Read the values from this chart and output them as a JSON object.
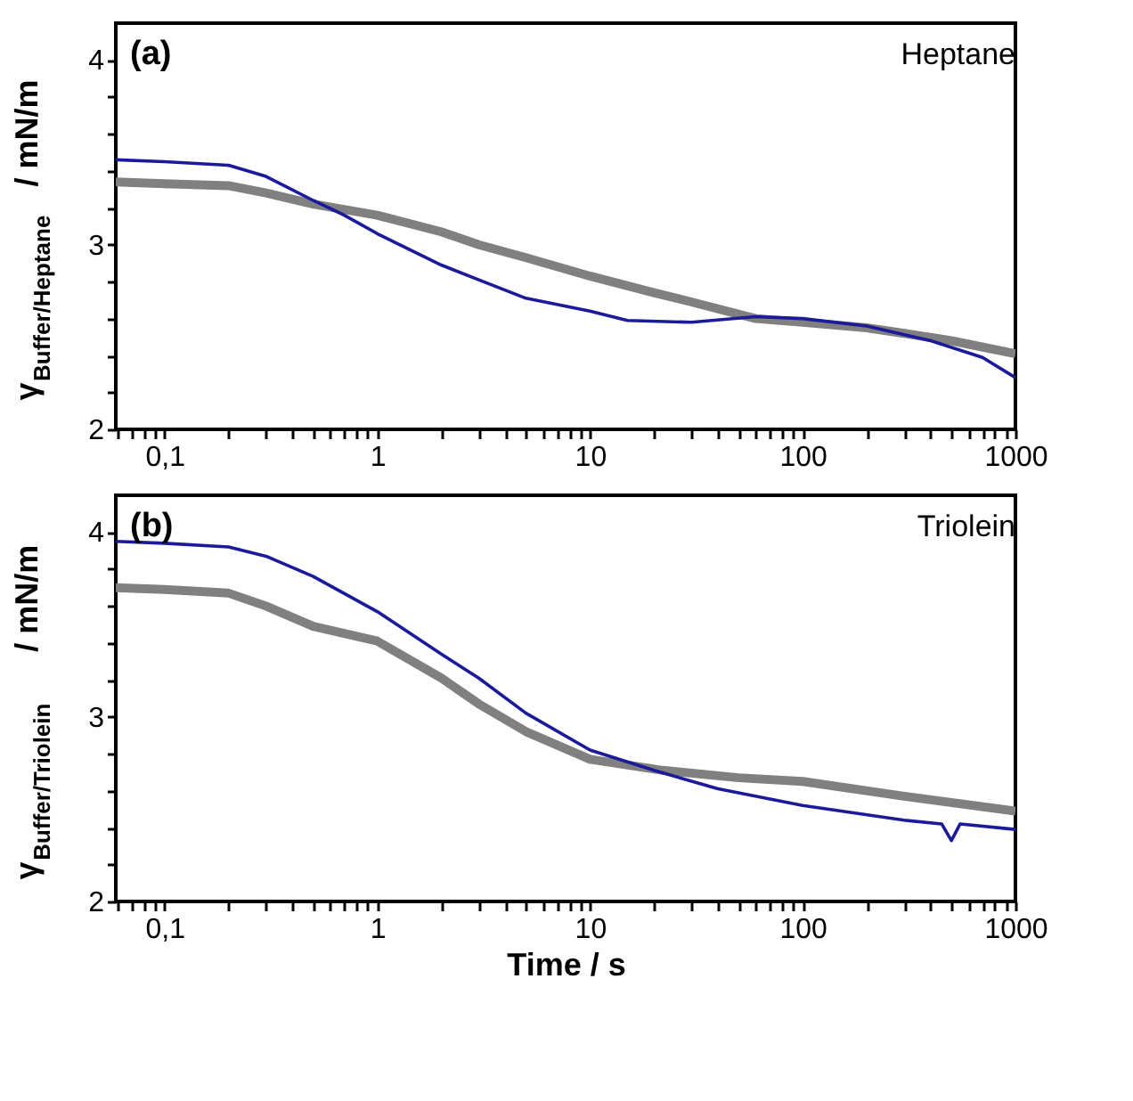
{
  "chart_data": [
    {
      "type": "line",
      "ylabel": "γ$_{Buffer/Heptane}$ / mN/m",
      "annotations": [
        "(a)",
        "Heptane"
      ],
      "xlim": [
        0.059,
        1000
      ],
      "ylim": [
        2,
        4.2
      ],
      "log": "x",
      "xticks": [
        {
          "value": 0.06,
          "label": null
        },
        {
          "value": 0.07,
          "label": null
        },
        {
          "value": 0.08,
          "label": null
        },
        {
          "value": 0.09,
          "label": null
        },
        {
          "value": 0.1,
          "label": "0,1"
        },
        {
          "value": 0.2,
          "label": null
        },
        {
          "value": 0.3,
          "label": null
        },
        {
          "value": 0.4,
          "label": null
        },
        {
          "value": 0.5,
          "label": null
        },
        {
          "value": 0.6,
          "label": null
        },
        {
          "value": 0.7,
          "label": null
        },
        {
          "value": 0.8,
          "label": null
        },
        {
          "value": 0.9,
          "label": null
        },
        1,
        {
          "value": 2,
          "label": null
        },
        {
          "value": 3,
          "label": null
        },
        {
          "value": 4,
          "label": null
        },
        {
          "value": 5,
          "label": null
        },
        {
          "value": 6,
          "label": null
        },
        {
          "value": 7,
          "label": null
        },
        {
          "value": 8,
          "label": null
        },
        {
          "value": 9,
          "label": null
        },
        10,
        {
          "value": 20,
          "label": null
        },
        {
          "value": 30,
          "label": null
        },
        {
          "value": 40,
          "label": null
        },
        {
          "value": 50,
          "label": null
        },
        {
          "value": 60,
          "label": null
        },
        {
          "value": 70,
          "label": null
        },
        {
          "value": 80,
          "label": null
        },
        {
          "value": 90,
          "label": null
        },
        100,
        {
          "value": 200,
          "label": null
        },
        {
          "value": 300,
          "label": null
        },
        {
          "value": 400,
          "label": null
        },
        {
          "value": 500,
          "label": null
        },
        {
          "value": 600,
          "label": null
        },
        {
          "value": 700,
          "label": null
        },
        {
          "value": 800,
          "label": null
        },
        {
          "value": 900,
          "label": null
        },
        1000
      ],
      "yticks": [
        2,
        {
          "value": 2.2,
          "label": null
        },
        {
          "value": 2.4,
          "label": null
        },
        {
          "value": 2.6,
          "label": null
        },
        {
          "value": 2.8,
          "label": null
        },
        3,
        {
          "value": 3.2,
          "label": null
        },
        {
          "value": 3.4,
          "label": null
        },
        {
          "value": 3.6,
          "label": null
        },
        {
          "value": 3.8,
          "label": null
        },
        4
      ],
      "series": [
        {
          "color": "#808080",
          "x": [
            0.059,
            0.1,
            0.2,
            0.3,
            0.5,
            1,
            2,
            3,
            5,
            10,
            20,
            30,
            60,
            100,
            200,
            300,
            500,
            1000
          ],
          "values": [
            3.34,
            3.33,
            3.32,
            3.28,
            3.22,
            3.16,
            3.07,
            3.0,
            2.93,
            2.83,
            2.74,
            2.69,
            2.6,
            2.58,
            2.55,
            2.52,
            2.48,
            2.41
          ]
        },
        {
          "color": "#1a1a9a",
          "x": [
            0.059,
            0.1,
            0.2,
            0.3,
            0.5,
            0.7,
            1,
            2,
            3,
            5,
            10,
            15,
            30,
            60,
            100,
            200,
            400,
            700,
            1000
          ],
          "values": [
            3.46,
            3.45,
            3.43,
            3.37,
            3.24,
            3.16,
            3.06,
            2.89,
            2.81,
            2.71,
            2.64,
            2.59,
            2.58,
            2.61,
            2.6,
            2.56,
            2.48,
            2.39,
            2.28
          ]
        }
      ]
    },
    {
      "type": "line",
      "xlabel": "Time / s",
      "ylabel": "γ$_{Buffer/Triolein}$ / mN/m",
      "annotations": [
        "(b)",
        "Triolein"
      ],
      "xlim": [
        0.059,
        1000
      ],
      "ylim": [
        2,
        4.2
      ],
      "log": "x",
      "xticks": [
        {
          "value": 0.06,
          "label": null
        },
        {
          "value": 0.07,
          "label": null
        },
        {
          "value": 0.08,
          "label": null
        },
        {
          "value": 0.09,
          "label": null
        },
        {
          "value": 0.1,
          "label": "0,1"
        },
        {
          "value": 0.2,
          "label": null
        },
        {
          "value": 0.3,
          "label": null
        },
        {
          "value": 0.4,
          "label": null
        },
        {
          "value": 0.5,
          "label": null
        },
        {
          "value": 0.6,
          "label": null
        },
        {
          "value": 0.7,
          "label": null
        },
        {
          "value": 0.8,
          "label": null
        },
        {
          "value": 0.9,
          "label": null
        },
        1,
        {
          "value": 2,
          "label": null
        },
        {
          "value": 3,
          "label": null
        },
        {
          "value": 4,
          "label": null
        },
        {
          "value": 5,
          "label": null
        },
        {
          "value": 6,
          "label": null
        },
        {
          "value": 7,
          "label": null
        },
        {
          "value": 8,
          "label": null
        },
        {
          "value": 9,
          "label": null
        },
        10,
        {
          "value": 20,
          "label": null
        },
        {
          "value": 30,
          "label": null
        },
        {
          "value": 40,
          "label": null
        },
        {
          "value": 50,
          "label": null
        },
        {
          "value": 60,
          "label": null
        },
        {
          "value": 70,
          "label": null
        },
        {
          "value": 80,
          "label": null
        },
        {
          "value": 90,
          "label": null
        },
        100,
        {
          "value": 200,
          "label": null
        },
        {
          "value": 300,
          "label": null
        },
        {
          "value": 400,
          "label": null
        },
        {
          "value": 500,
          "label": null
        },
        {
          "value": 600,
          "label": null
        },
        {
          "value": 700,
          "label": null
        },
        {
          "value": 800,
          "label": null
        },
        {
          "value": 900,
          "label": null
        },
        1000
      ],
      "yticks": [
        2,
        {
          "value": 2.2,
          "label": null
        },
        {
          "value": 2.4,
          "label": null
        },
        {
          "value": 2.6,
          "label": null
        },
        {
          "value": 2.8,
          "label": null
        },
        3,
        {
          "value": 3.2,
          "label": null
        },
        {
          "value": 3.4,
          "label": null
        },
        {
          "value": 3.6,
          "label": null
        },
        {
          "value": 3.8,
          "label": null
        },
        4
      ],
      "series": [
        {
          "color": "#808080",
          "x": [
            0.059,
            0.1,
            0.2,
            0.3,
            0.5,
            1,
            2,
            3,
            5,
            10,
            22,
            50,
            100,
            300,
            1000
          ],
          "values": [
            3.7,
            3.69,
            3.67,
            3.6,
            3.49,
            3.41,
            3.21,
            3.07,
            2.92,
            2.77,
            2.71,
            2.67,
            2.65,
            2.57,
            2.49
          ]
        },
        {
          "color": "#1a1a9a",
          "x": [
            0.059,
            0.1,
            0.2,
            0.3,
            0.5,
            1,
            2,
            3,
            5,
            10,
            20,
            40,
            100,
            300,
            450,
            500,
            550,
            1000
          ],
          "values": [
            3.95,
            3.94,
            3.92,
            3.87,
            3.76,
            3.57,
            3.34,
            3.21,
            3.02,
            2.82,
            2.71,
            2.61,
            2.52,
            2.44,
            2.42,
            2.33,
            2.42,
            2.39
          ]
        }
      ]
    }
  ]
}
